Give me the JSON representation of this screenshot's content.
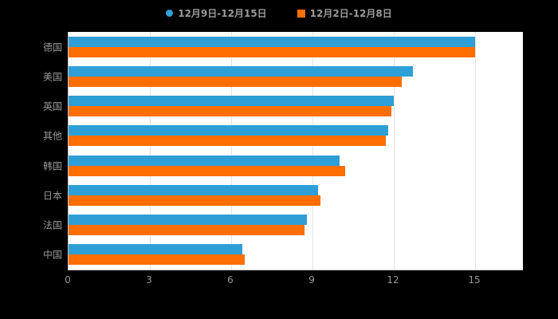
{
  "legend": {
    "items": [
      {
        "marker": "circle",
        "color": "#2E9FD6"
      },
      {
        "marker": "square",
        "color": "#FF6E00"
      }
    ]
  },
  "chart_data": {
    "type": "bar",
    "orientation": "horizontal",
    "title": "",
    "categories": [
      "德国",
      "美国",
      "英国",
      "其他",
      "韩国",
      "日本",
      "法国",
      "中国"
    ],
    "series": [
      {
        "name": "12月9日-12月15日",
        "color": "#2E9FD6",
        "values": [
          15,
          12.7,
          12.0,
          11.8,
          10.0,
          9.2,
          8.8,
          6.4
        ]
      },
      {
        "name": "12月2日-12月8日",
        "color": "#FF6E00",
        "values": [
          15,
          12.3,
          11.9,
          11.7,
          10.2,
          9.3,
          8.7,
          6.5
        ]
      }
    ],
    "xlim": [
      0,
      15
    ],
    "xticks": [
      0,
      3,
      6,
      9,
      12,
      15
    ],
    "grid": true,
    "legend_position": "top",
    "background": "#000000",
    "plot_background": "#ffffff",
    "grid_color": "#e3e3e3",
    "axis_text_color": "#999999"
  }
}
